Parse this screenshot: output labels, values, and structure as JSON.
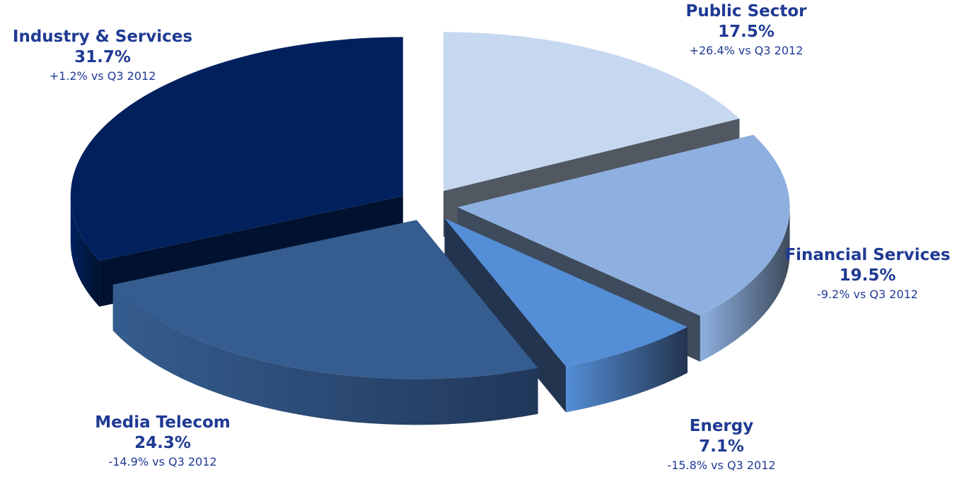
{
  "chart_data": {
    "type": "pie",
    "three_d": true,
    "exploded": true,
    "slices": [
      {
        "name": "Industry & Services",
        "value": 31.7,
        "value_label": "31.7%",
        "change": "+1.2% vs Q3 2012",
        "color": "#00205e",
        "side_color": "#00122f"
      },
      {
        "name": "Media Telecom",
        "value": 24.3,
        "value_label": "24.3%",
        "change": "-14.9% vs Q3 2012",
        "color": "#355d8f",
        "side_color": "#21375a"
      },
      {
        "name": "Energy",
        "value": 7.1,
        "value_label": "7.1%",
        "change": "-15.8% vs Q3 2012",
        "color": "#548ed6",
        "side_color": "#23344f"
      },
      {
        "name": "Financial Services",
        "value": 19.5,
        "value_label": "19.5%",
        "change": "-9.2% vs Q3 2012",
        "color": "#8eb0e0",
        "side_color": "#3e4b5c"
      },
      {
        "name": "Public Sector",
        "value": 17.5,
        "value_label": "17.5%",
        "change": "+26.4% vs Q3 2012",
        "color": "#c6d8f0",
        "side_color": "#515861"
      }
    ]
  },
  "labels": {
    "industry": {
      "name": "Industry & Services",
      "pct": "31.7%",
      "change": "+1.2% vs Q3 2012"
    },
    "public": {
      "name": "Public Sector",
      "pct": "17.5%",
      "change": "+26.4% vs Q3 2012"
    },
    "financial": {
      "name": "Financial Services",
      "pct": "19.5%",
      "change": "-9.2% vs Q3 2012"
    },
    "energy": {
      "name": "Energy",
      "pct": "7.1%",
      "change": "-15.8% vs Q3 2012"
    },
    "media": {
      "name": "Media Telecom",
      "pct": "24.3%",
      "change": "-14.9% vs Q3 2012"
    }
  },
  "colors": {
    "label_text": "#1f3a93"
  }
}
